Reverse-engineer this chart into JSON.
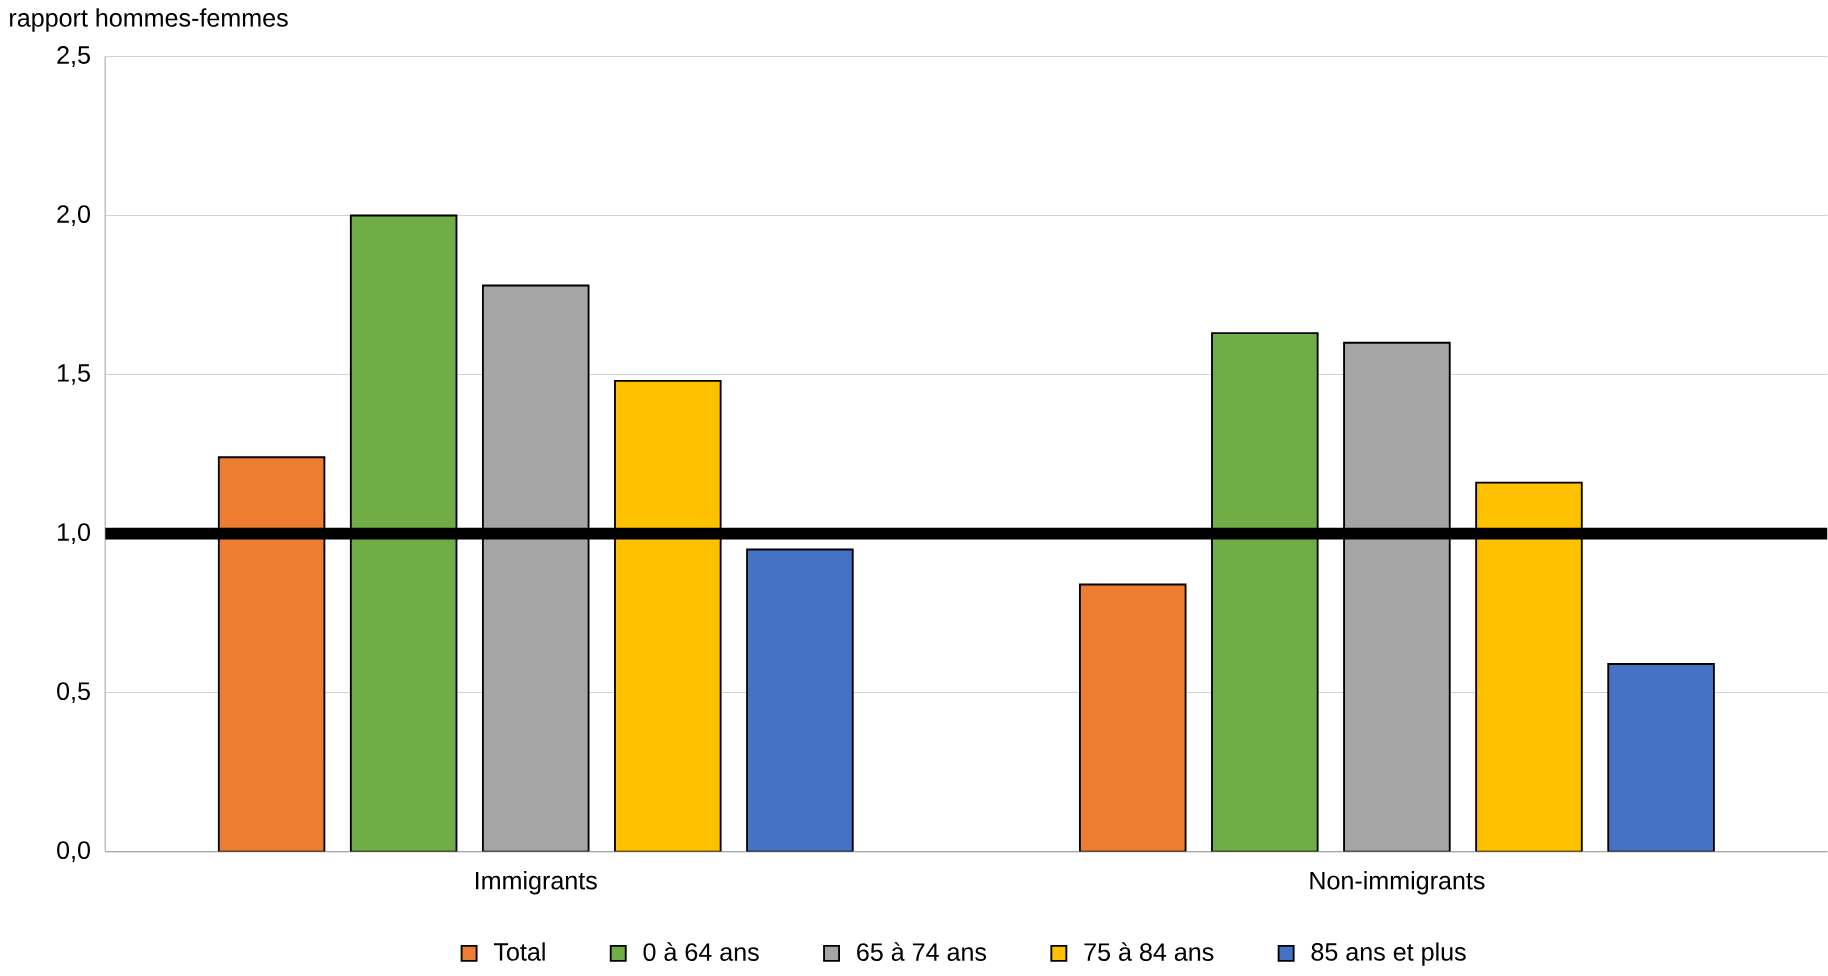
{
  "chart_data": {
    "type": "bar",
    "ylabel": "rapport hommes-femmes",
    "categories": [
      "Immigrants",
      "Non-immigrants"
    ],
    "series": [
      {
        "name": "Total",
        "color": "#ed7d31",
        "values": [
          1.24,
          0.84
        ]
      },
      {
        "name": "0 à 64 ans",
        "color": "#70ad47",
        "values": [
          2.0,
          1.63
        ]
      },
      {
        "name": "65 à 74 ans",
        "color": "#a5a5a5",
        "values": [
          1.78,
          1.6
        ]
      },
      {
        "name": "75 à 84 ans",
        "color": "#ffc000",
        "values": [
          1.48,
          1.16
        ]
      },
      {
        "name": "85 ans et plus",
        "color": "#4472c4",
        "values": [
          0.95,
          0.59
        ]
      }
    ],
    "ylim": [
      0,
      2.5
    ],
    "yticks": [
      {
        "value": 0,
        "label": "0,0"
      },
      {
        "value": 0.5,
        "label": "0,5"
      },
      {
        "value": 1,
        "label": "1,0"
      },
      {
        "value": 1.5,
        "label": "1,5"
      },
      {
        "value": 2,
        "label": "2,0"
      },
      {
        "value": 2.5,
        "label": "2,5"
      }
    ],
    "ref_lines": [
      {
        "axis": "y",
        "value": 1,
        "color": "#000000"
      }
    ],
    "grid": "y",
    "legend": "bottom"
  }
}
